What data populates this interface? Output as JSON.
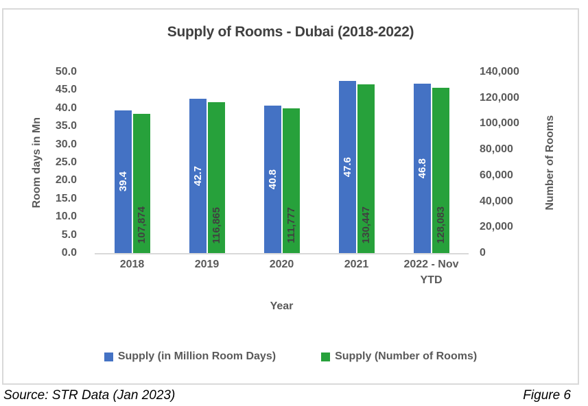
{
  "chart_data": {
    "type": "bar",
    "title": "Supply of Rooms - Dubai (2018-2022)",
    "categories": [
      "2018",
      "2019",
      "2020",
      "2021",
      "2022 - Nov YTD"
    ],
    "series": [
      {
        "name": "Supply (in Million Room Days)",
        "axis": "left",
        "color": "#4472C4",
        "values": [
          39.4,
          42.7,
          40.8,
          47.6,
          46.8
        ],
        "labels": [
          "39.4",
          "42.7",
          "40.8",
          "47.6",
          "46.8"
        ],
        "label_color": "#FFFFFF",
        "label_placement": "center"
      },
      {
        "name": "Supply (Number of Rooms)",
        "axis": "right",
        "color": "#27A13B",
        "values": [
          107874,
          116865,
          111777,
          130447,
          128083
        ],
        "labels": [
          "107,874",
          "116,865",
          "111,777",
          "130,447",
          "128,083"
        ],
        "label_color": "#404040",
        "label_placement": "inside-base"
      }
    ],
    "left_axis": {
      "title": "Room days in Mn",
      "min": 0,
      "max": 50,
      "ticks": [
        "50.0",
        "45.0",
        "40.0",
        "35.0",
        "30.0",
        "25.0",
        "20.0",
        "15.0",
        "10.0",
        "5.0",
        "0.0"
      ]
    },
    "right_axis": {
      "title": "Number of Rooms",
      "min": 0,
      "max": 140000,
      "ticks": [
        "140,000",
        "120,000",
        "100,000",
        "80,000",
        "60,000",
        "40,000",
        "20,000",
        "0"
      ]
    },
    "xlabel": "Year",
    "grid": false,
    "legend_position": "bottom",
    "legend": [
      "Supply (in Million Room Days)",
      "Supply (Number of Rooms)"
    ],
    "axis_line_color": "#d9d9d9"
  },
  "footer": {
    "source": "Source: STR Data (Jan 2023)",
    "figure": "Figure 6"
  }
}
